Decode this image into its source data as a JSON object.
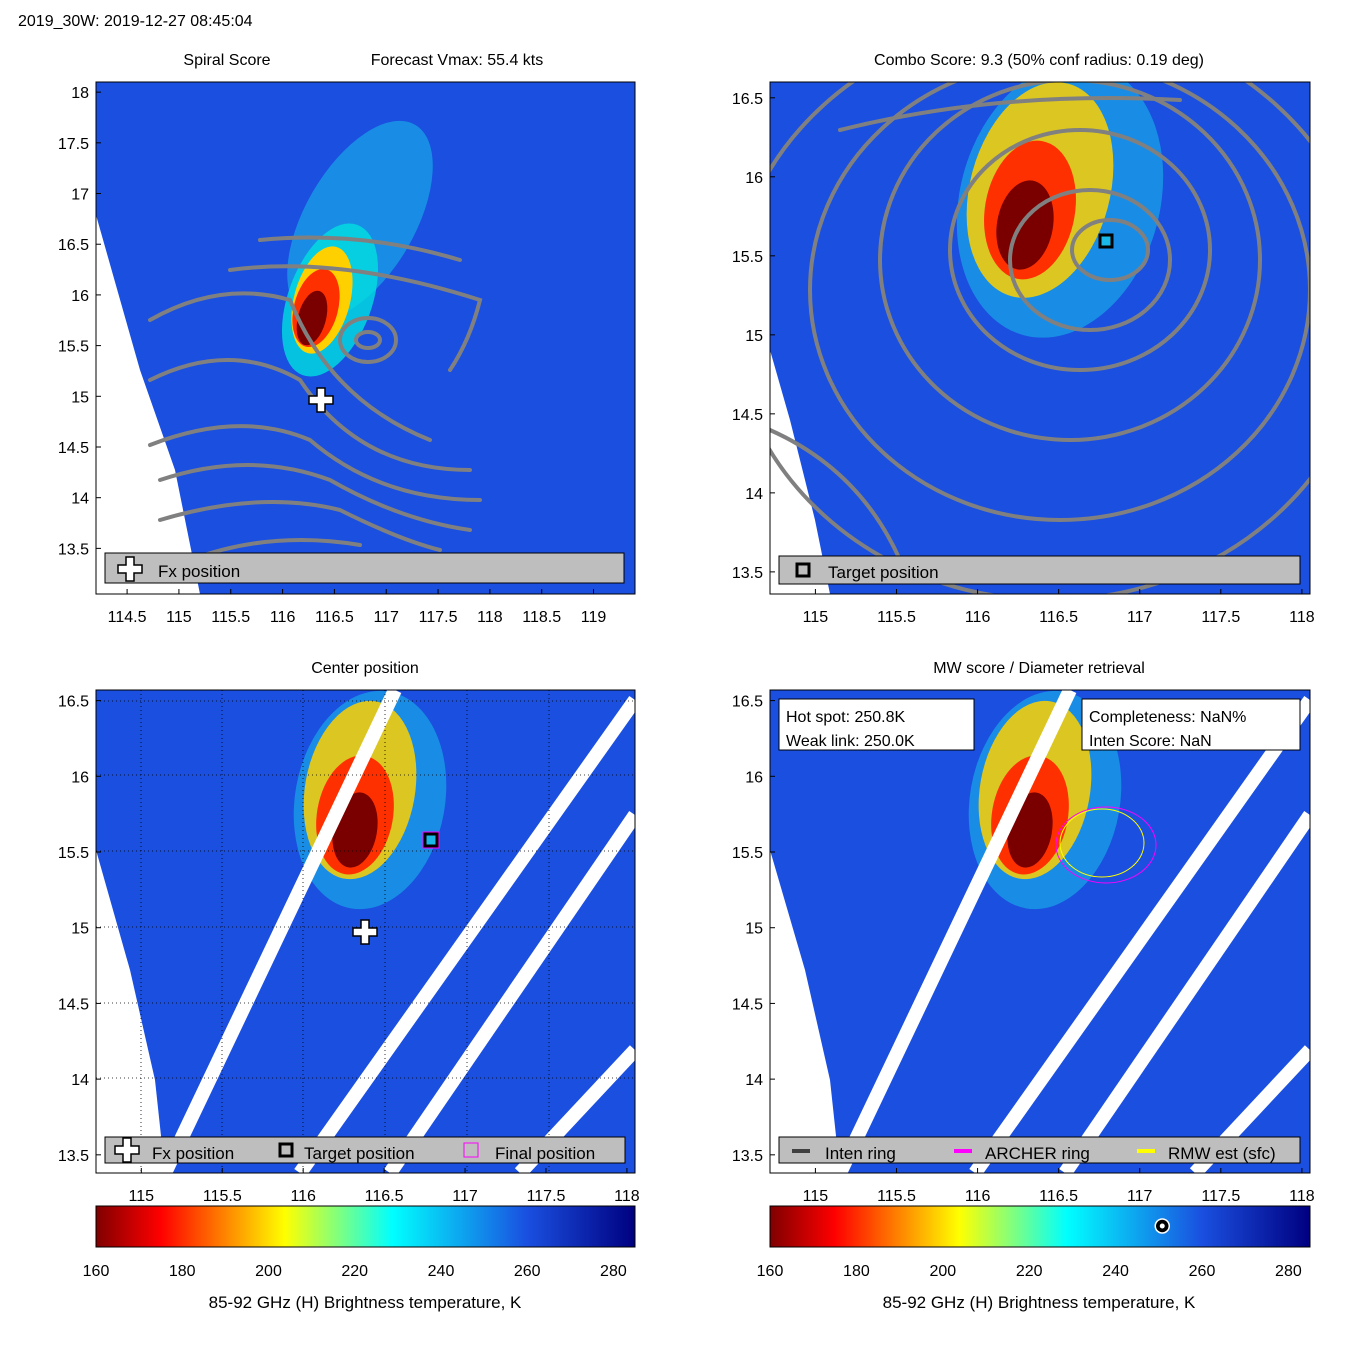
{
  "header": {
    "title": "2019_30W: 2019-12-27 08:45:04"
  },
  "colors": {
    "background_blue": "#1a4fe0",
    "contour": "#808080",
    "swath_gap": "#ffffff",
    "legend_box": "#bebebe",
    "archer_ring": "#ff00ff",
    "rmw_ring": "#ffff00",
    "inten_ring": "#404040",
    "final_marker": "#ff00ff"
  },
  "icons": {
    "fx_position": "white-plus-cross-icon",
    "target_position": "black-square-marker-icon",
    "final_position": "magenta-square-outline-icon",
    "hot_spot": "ring-marker-icon"
  },
  "chart_data": [
    {
      "id": "spiral",
      "type": "heatmap",
      "title": "Spiral Score",
      "subtitle": "Forecast Vmax: 55.4 kts",
      "xlim": [
        114.2,
        119.4
      ],
      "ylim": [
        13.05,
        18.1
      ],
      "xticks": [
        "114.5",
        "115",
        "115.5",
        "116",
        "116.5",
        "117",
        "117.5",
        "118",
        "118.5",
        "119"
      ],
      "yticks": [
        "13.5",
        "14",
        "14.5",
        "15",
        "15.5",
        "16",
        "16.5",
        "17",
        "17.5",
        "18"
      ],
      "grid": false,
      "legend_position": "bottom",
      "legend": [
        {
          "icon": "white-plus-cross-icon",
          "label": "Fx position"
        }
      ],
      "markers": {
        "fx_position": [
          116.37,
          14.99
        ]
      },
      "hot_core": [
        116.25,
        15.6
      ]
    },
    {
      "id": "combo",
      "type": "heatmap",
      "title": "Combo Score: 9.3  (50% conf radius: 0.19 deg)",
      "xlim": [
        114.72,
        118.05
      ],
      "ylim": [
        13.36,
        16.6
      ],
      "xticks": [
        "115",
        "115.5",
        "116",
        "116.5",
        "117",
        "117.5",
        "118"
      ],
      "yticks": [
        "13.5",
        "14",
        "14.5",
        "15",
        "15.5",
        "16",
        "16.5"
      ],
      "grid": false,
      "legend_position": "bottom",
      "legend": [
        {
          "icon": "black-square-marker-icon",
          "label": "Target position"
        }
      ],
      "markers": {
        "target_position": [
          116.78,
          15.58
        ]
      },
      "hot_core": [
        116.28,
        15.58
      ]
    },
    {
      "id": "center",
      "type": "heatmap",
      "title": "Center position",
      "xlim": [
        114.72,
        118.05
      ],
      "ylim": [
        13.38,
        16.57
      ],
      "xticks": [
        "115",
        "115.5",
        "116",
        "116.5",
        "117",
        "117.5",
        "118"
      ],
      "yticks": [
        "13.5",
        "14",
        "14.5",
        "15",
        "15.5",
        "16",
        "16.5"
      ],
      "grid": true,
      "legend_position": "bottom",
      "legend": [
        {
          "icon": "white-plus-cross-icon",
          "label": "Fx position"
        },
        {
          "icon": "black-square-marker-icon",
          "label": "Target position"
        },
        {
          "icon": "magenta-square-outline-icon",
          "label": "Final position"
        }
      ],
      "markers": {
        "fx_position": [
          116.37,
          14.98
        ],
        "target_position": [
          116.78,
          15.57
        ],
        "final_position": [
          116.78,
          15.57
        ]
      },
      "hot_core": [
        116.3,
        15.6
      ]
    },
    {
      "id": "mw",
      "type": "heatmap",
      "title": "MW score / Diameter retrieval",
      "xlim": [
        114.72,
        118.05
      ],
      "ylim": [
        13.38,
        16.57
      ],
      "xticks": [
        "115",
        "115.5",
        "116",
        "116.5",
        "117",
        "117.5",
        "118"
      ],
      "yticks": [
        "13.5",
        "14",
        "14.5",
        "15",
        "15.5",
        "16",
        "16.5"
      ],
      "grid": false,
      "legend_position": "bottom",
      "legend": [
        {
          "label": "Inten ring",
          "color": "#404040"
        },
        {
          "label": "ARCHER ring",
          "color": "#ff00ff"
        },
        {
          "label": "RMW est (sfc)",
          "color": "#ffff00"
        }
      ],
      "info_left": [
        "Hot spot: 250.8K",
        "Weak link: 250.0K"
      ],
      "info_right": [
        "Completeness: NaN%",
        "Inten Score: NaN"
      ],
      "rings": {
        "center": [
          116.78,
          15.55
        ],
        "archer_radius_deg": 0.3,
        "rmw_radius_deg": 0.25
      },
      "hot_core": [
        116.3,
        15.6
      ]
    }
  ],
  "colorbars": [
    {
      "id": "cb_left",
      "range": [
        160,
        285
      ],
      "ticks": [
        "160",
        "180",
        "200",
        "220",
        "240",
        "260",
        "280"
      ],
      "label": "85-92 GHz (H) Brightness temperature, K"
    },
    {
      "id": "cb_right",
      "range": [
        160,
        285
      ],
      "ticks": [
        "160",
        "180",
        "200",
        "220",
        "240",
        "260",
        "280"
      ],
      "label": "85-92 GHz (H) Brightness temperature, K",
      "marker_value": 250.8
    }
  ]
}
